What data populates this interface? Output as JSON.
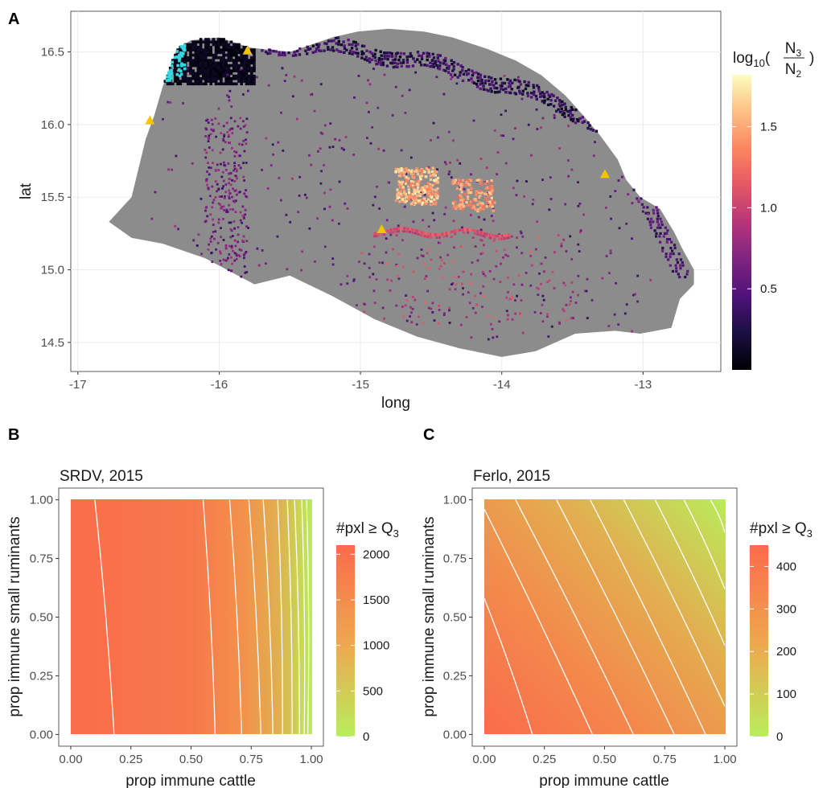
{
  "panels": {
    "a": "A",
    "b": "B",
    "c": "C"
  },
  "colors": {
    "land": "#8c8c8c",
    "grid": "#ebebeb",
    "contour": "#ffffff",
    "marker": "#f5c400",
    "cyan": "#35d8e0",
    "rb_low": "#b8ee5c",
    "rb_high": "#fb6b4b"
  },
  "chart_data": [
    {
      "type": "heatmap",
      "title": "",
      "xlabel": "long",
      "ylabel": "lat",
      "xlim": [
        -17.05,
        -12.45
      ],
      "ylim": [
        14.3,
        16.78
      ],
      "xticks": [
        -17,
        -16,
        -15,
        -14,
        -13
      ],
      "xtick_labels": [
        "-17",
        "-16",
        "-15",
        "-14",
        "-13"
      ],
      "yticks": [
        14.5,
        15.0,
        15.5,
        16.0,
        16.5
      ],
      "ytick_labels": [
        "14.5",
        "15.0",
        "15.5",
        "16.0",
        "16.5"
      ],
      "grid": true,
      "legend": {
        "title_base": "log",
        "title_sub": "10",
        "title_num": "N",
        "title_num_sub": "3",
        "title_den": "N",
        "title_den_sub": "2",
        "ticks": [
          0.5,
          1.0,
          1.5
        ],
        "tick_labels": [
          "0.5",
          "1.0",
          "1.5"
        ],
        "range": [
          0.0,
          1.82
        ],
        "colormap": "magma",
        "position": "right"
      },
      "region_outline": [
        [
          -16.78,
          15.33
        ],
        [
          -16.62,
          15.5
        ],
        [
          -16.52,
          15.9
        ],
        [
          -16.46,
          16.06
        ],
        [
          -16.4,
          16.26
        ],
        [
          -16.3,
          16.52
        ],
        [
          -16.2,
          16.58
        ],
        [
          -16.0,
          16.6
        ],
        [
          -15.78,
          16.53
        ],
        [
          -15.5,
          16.5
        ],
        [
          -15.2,
          16.6
        ],
        [
          -15.02,
          16.64
        ],
        [
          -14.8,
          16.66
        ],
        [
          -14.55,
          16.64
        ],
        [
          -14.35,
          16.6
        ],
        [
          -14.1,
          16.52
        ],
        [
          -13.9,
          16.44
        ],
        [
          -13.72,
          16.34
        ],
        [
          -13.55,
          16.2
        ],
        [
          -13.42,
          16.06
        ],
        [
          -13.3,
          15.92
        ],
        [
          -13.18,
          15.76
        ],
        [
          -13.12,
          15.62
        ],
        [
          -13.02,
          15.5
        ],
        [
          -12.88,
          15.42
        ],
        [
          -12.78,
          15.26
        ],
        [
          -12.72,
          15.14
        ],
        [
          -12.64,
          15.0
        ],
        [
          -12.64,
          14.9
        ],
        [
          -12.74,
          14.8
        ],
        [
          -12.8,
          14.6
        ],
        [
          -13.02,
          14.56
        ],
        [
          -13.2,
          14.58
        ],
        [
          -13.48,
          14.56
        ],
        [
          -13.76,
          14.44
        ],
        [
          -14.0,
          14.4
        ],
        [
          -14.3,
          14.46
        ],
        [
          -14.6,
          14.54
        ],
        [
          -14.9,
          14.66
        ],
        [
          -15.2,
          14.82
        ],
        [
          -15.5,
          14.96
        ],
        [
          -15.75,
          14.9
        ],
        [
          -16.1,
          15.08
        ],
        [
          -16.4,
          15.18
        ],
        [
          -16.62,
          15.22
        ]
      ],
      "markers": [
        {
          "long": -16.49,
          "lat": 16.03
        },
        {
          "long": -15.8,
          "lat": 16.51
        },
        {
          "long": -14.85,
          "lat": 15.28
        },
        {
          "long": -13.27,
          "lat": 15.66
        }
      ]
    },
    {
      "type": "heatmap",
      "title": "SRDV, 2015",
      "xlabel": "prop immune cattle",
      "ylabel": "prop immune small ruminants",
      "xlim": [
        -0.05,
        1.05
      ],
      "ylim": [
        -0.05,
        1.05
      ],
      "xticks": [
        0.0,
        0.25,
        0.5,
        0.75,
        1.0
      ],
      "xtick_labels": [
        "0.00",
        "0.25",
        "0.50",
        "0.75",
        "1.00"
      ],
      "yticks": [
        0.0,
        0.25,
        0.5,
        0.75,
        1.0
      ],
      "ytick_labels": [
        "0.00",
        "0.25",
        "0.50",
        "0.75",
        "1.00"
      ],
      "legend": {
        "title": "#pxl ≥ Q",
        "title_sub": "3",
        "ticks": [
          0,
          500,
          1000,
          1500,
          2000
        ],
        "tick_labels": [
          "0",
          "500",
          "1000",
          "1500",
          "2000"
        ],
        "range": [
          0,
          2100
        ],
        "position": "right"
      },
      "contour_lines": [
        [
          [
            0.1,
            1.0
          ],
          [
            0.18,
            0.0
          ]
        ],
        [
          [
            0.55,
            1.0
          ],
          [
            0.6,
            0.0
          ]
        ],
        [
          [
            0.66,
            1.0
          ],
          [
            0.71,
            0.0
          ]
        ],
        [
          [
            0.74,
            1.0
          ],
          [
            0.79,
            0.0
          ]
        ],
        [
          [
            0.8,
            1.0
          ],
          [
            0.84,
            0.0
          ]
        ],
        [
          [
            0.86,
            1.0
          ],
          [
            0.88,
            0.0
          ]
        ],
        [
          [
            0.9,
            1.0
          ],
          [
            0.92,
            0.0
          ]
        ],
        [
          [
            0.93,
            1.0
          ],
          [
            0.95,
            0.0
          ]
        ],
        [
          [
            0.96,
            1.0
          ],
          [
            0.97,
            0.0
          ]
        ],
        [
          [
            0.98,
            1.0
          ],
          [
            0.985,
            0.0
          ]
        ]
      ]
    },
    {
      "type": "heatmap",
      "title": "Ferlo, 2015",
      "xlabel": "prop immune cattle",
      "ylabel": "prop immune small ruminants",
      "xlim": [
        -0.05,
        1.05
      ],
      "ylim": [
        -0.05,
        1.05
      ],
      "xticks": [
        0.0,
        0.25,
        0.5,
        0.75,
        1.0
      ],
      "xtick_labels": [
        "0.00",
        "0.25",
        "0.50",
        "0.75",
        "1.00"
      ],
      "yticks": [
        0.0,
        0.25,
        0.5,
        0.75,
        1.0
      ],
      "ytick_labels": [
        "0.00",
        "0.25",
        "0.50",
        "0.75",
        "1.00"
      ],
      "legend": {
        "title": "#pxl ≥ Q",
        "title_sub": "3",
        "ticks": [
          0,
          100,
          200,
          300,
          400
        ],
        "tick_labels": [
          "0",
          "100",
          "200",
          "300",
          "400"
        ],
        "range": [
          0,
          450
        ],
        "position": "right"
      },
      "contour_lines": [
        [
          [
            0.0,
            0.58
          ],
          [
            0.2,
            0.0
          ]
        ],
        [
          [
            0.0,
            0.96
          ],
          [
            0.45,
            0.0
          ]
        ],
        [
          [
            0.13,
            1.0
          ],
          [
            0.62,
            0.0
          ]
        ],
        [
          [
            0.3,
            1.0
          ],
          [
            0.79,
            0.0
          ]
        ],
        [
          [
            0.44,
            1.0
          ],
          [
            0.92,
            0.0
          ]
        ],
        [
          [
            0.58,
            1.0
          ],
          [
            1.0,
            0.12
          ]
        ],
        [
          [
            0.71,
            1.0
          ],
          [
            1.0,
            0.38
          ]
        ],
        [
          [
            0.83,
            1.0
          ],
          [
            1.0,
            0.62
          ]
        ],
        [
          [
            0.94,
            1.0
          ],
          [
            1.0,
            0.86
          ]
        ]
      ]
    }
  ]
}
